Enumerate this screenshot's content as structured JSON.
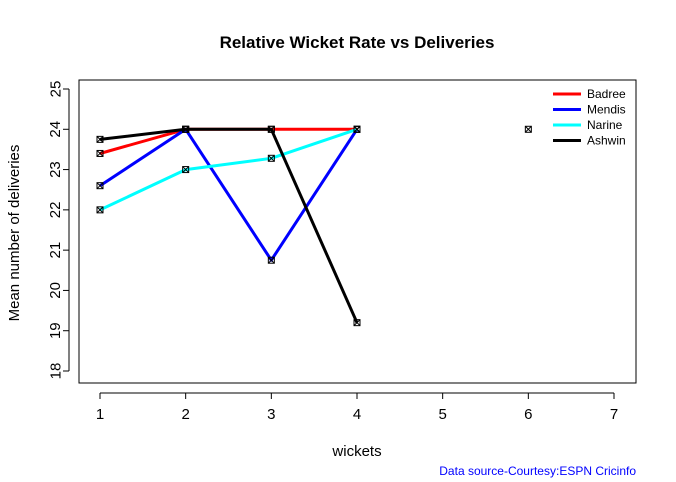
{
  "chart_data": {
    "type": "line",
    "title": "Relative Wicket Rate vs Deliveries",
    "xlabel": "wickets",
    "ylabel": "Mean number of deliveries",
    "xlim": [
      1,
      7
    ],
    "ylim": [
      18,
      25
    ],
    "x_ticks": [
      1,
      2,
      3,
      4,
      5,
      6,
      7
    ],
    "y_ticks": [
      18,
      19,
      20,
      21,
      22,
      23,
      24,
      25
    ],
    "legend_position": "top-right",
    "series": [
      {
        "name": "Badree",
        "color": "#ff0000",
        "points": [
          [
            1,
            23.4
          ],
          [
            2,
            24.0
          ],
          [
            3,
            24.0
          ],
          [
            4,
            24.0
          ]
        ]
      },
      {
        "name": "Mendis",
        "color": "#0000ff",
        "points": [
          [
            1,
            22.6
          ],
          [
            2,
            24.0
          ],
          [
            3,
            20.75
          ],
          [
            4,
            24.0
          ]
        ]
      },
      {
        "name": "Narine",
        "color": "#00ffff",
        "points": [
          [
            1,
            22.0
          ],
          [
            2,
            23.0
          ],
          [
            3,
            23.28
          ],
          [
            4,
            24.0
          ]
        ]
      },
      {
        "name": "Ashwin",
        "color": "#000000",
        "points": [
          [
            1,
            23.75
          ],
          [
            2,
            24.0
          ],
          [
            3,
            24.0
          ],
          [
            4,
            19.2
          ]
        ]
      }
    ],
    "extra_points": [
      [
        6,
        24.0
      ]
    ],
    "source_note": "Data source-Courtesy:ESPN Cricinfo",
    "source_color": "#0000ff"
  }
}
